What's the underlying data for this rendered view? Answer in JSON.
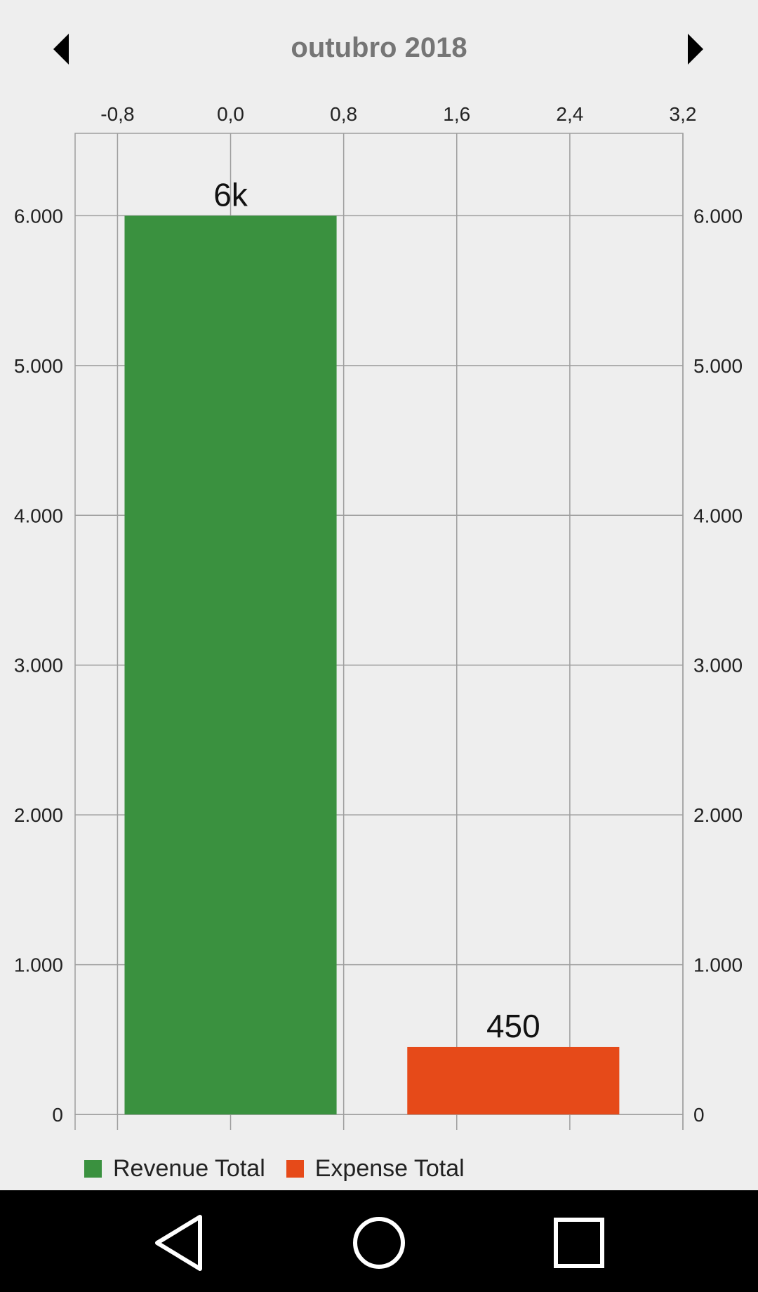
{
  "header": {
    "title": "outubro 2018",
    "prev_icon": "triangle-left-icon",
    "next_icon": "triangle-right-icon"
  },
  "chart_data": {
    "type": "bar",
    "x_axis": {
      "position": "top",
      "min": -1.1,
      "max": 3.2,
      "ticks": [
        "-0,8",
        "0,0",
        "0,8",
        "1,6",
        "2,4",
        "3,2"
      ],
      "tick_values": [
        -0.8,
        0.0,
        0.8,
        1.6,
        2.4,
        3.2
      ]
    },
    "y_axis": {
      "min": 0,
      "max": 6550,
      "ticks": [
        "0",
        "1.000",
        "2.000",
        "3.000",
        "4.000",
        "5.000",
        "6.000"
      ],
      "tick_values": [
        0,
        1000,
        2000,
        3000,
        4000,
        5000,
        6000
      ],
      "mirrored_right": true
    },
    "grid": true,
    "bars": [
      {
        "x_start": -0.75,
        "x_end": 0.75,
        "value": 6000,
        "label": "6k",
        "color": "#3a913f"
      },
      {
        "x_start": 1.25,
        "x_end": 2.75,
        "value": 450,
        "label": "450",
        "color": "#e64a19"
      }
    ],
    "legend_position": "bottom-left",
    "series": [
      {
        "name": "Revenue Total",
        "values": [
          6000
        ],
        "color": "#3a913f"
      },
      {
        "name": "Expense Total",
        "values": [
          450
        ],
        "color": "#e64a19"
      }
    ]
  },
  "legend": [
    {
      "label": "Revenue Total",
      "color": "#3a913f"
    },
    {
      "label": "Expense Total",
      "color": "#e64a19"
    }
  ],
  "navbar": {
    "back_icon": "back-triangle-icon",
    "home_icon": "home-circle-icon",
    "recents_icon": "recents-square-icon"
  }
}
